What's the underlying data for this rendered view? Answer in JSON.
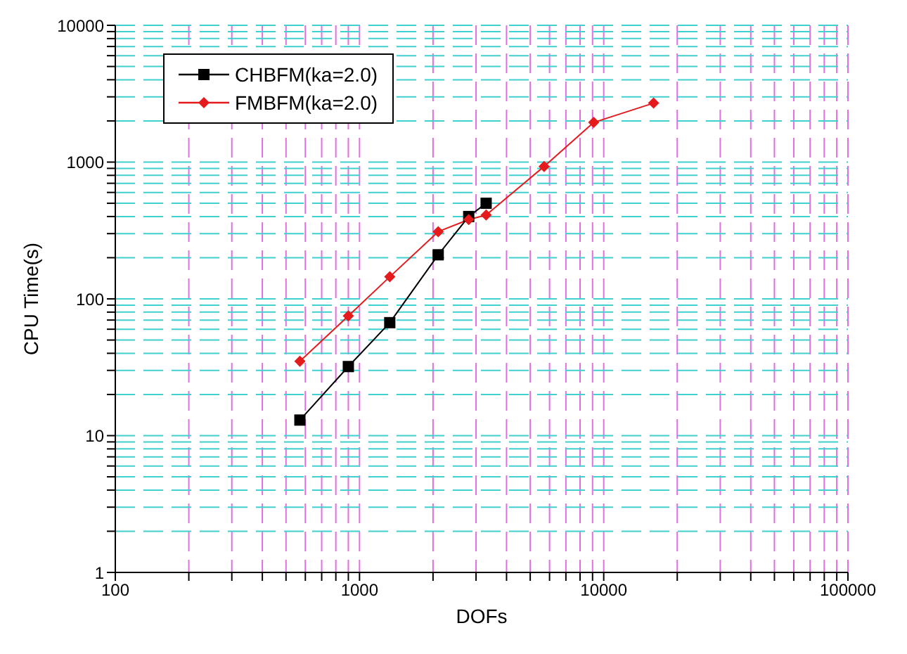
{
  "chart_data": {
    "type": "line",
    "xlabel": "DOFs",
    "ylabel": "CPU Time(s)",
    "log": "xy",
    "xlim": [
      100,
      100000
    ],
    "ylim": [
      1,
      10000
    ],
    "xticks": [
      100,
      {
        "value": 200,
        "label": null
      },
      {
        "value": 300,
        "label": null
      },
      {
        "value": 400,
        "label": null
      },
      {
        "value": 500,
        "label": null
      },
      {
        "value": 600,
        "label": null
      },
      {
        "value": 700,
        "label": null
      },
      {
        "value": 800,
        "label": null
      },
      {
        "value": 900,
        "label": null
      },
      1000,
      {
        "value": 2000,
        "label": null
      },
      {
        "value": 3000,
        "label": null
      },
      {
        "value": 4000,
        "label": null
      },
      {
        "value": 5000,
        "label": null
      },
      {
        "value": 6000,
        "label": null
      },
      {
        "value": 7000,
        "label": null
      },
      {
        "value": 8000,
        "label": null
      },
      {
        "value": 9000,
        "label": null
      },
      10000,
      {
        "value": 20000,
        "label": null
      },
      {
        "value": 30000,
        "label": null
      },
      {
        "value": 40000,
        "label": null
      },
      {
        "value": 50000,
        "label": null
      },
      {
        "value": 60000,
        "label": null
      },
      {
        "value": 70000,
        "label": null
      },
      {
        "value": 80000,
        "label": null
      },
      {
        "value": 90000,
        "label": null
      },
      100000
    ],
    "yticks": [
      1,
      {
        "value": 2,
        "label": null
      },
      {
        "value": 3,
        "label": null
      },
      {
        "value": 4,
        "label": null
      },
      {
        "value": 5,
        "label": null
      },
      {
        "value": 6,
        "label": null
      },
      {
        "value": 7,
        "label": null
      },
      {
        "value": 8,
        "label": null
      },
      {
        "value": 9,
        "label": null
      },
      10,
      {
        "value": 20,
        "label": null
      },
      {
        "value": 30,
        "label": null
      },
      {
        "value": 40,
        "label": null
      },
      {
        "value": 50,
        "label": null
      },
      {
        "value": 60,
        "label": null
      },
      {
        "value": 70,
        "label": null
      },
      {
        "value": 80,
        "label": null
      },
      {
        "value": 90,
        "label": null
      },
      100,
      {
        "value": 200,
        "label": null
      },
      {
        "value": 300,
        "label": null
      },
      {
        "value": 400,
        "label": null
      },
      {
        "value": 500,
        "label": null
      },
      {
        "value": 600,
        "label": null
      },
      {
        "value": 700,
        "label": null
      },
      {
        "value": 800,
        "label": null
      },
      {
        "value": 900,
        "label": null
      },
      1000,
      {
        "value": 2000,
        "label": null
      },
      {
        "value": 3000,
        "label": null
      },
      {
        "value": 4000,
        "label": null
      },
      {
        "value": 5000,
        "label": null
      },
      {
        "value": 6000,
        "label": null
      },
      {
        "value": 7000,
        "label": null
      },
      {
        "value": 8000,
        "label": null
      },
      {
        "value": 9000,
        "label": null
      },
      10000
    ],
    "grid": true,
    "legend": "top left",
    "line_style": "solid",
    "series": [
      {
        "name": "CHBFM(ka=2.0)",
        "color": "#000000",
        "marker": "square",
        "x": [
          570,
          900,
          1330,
          2100,
          2800,
          3300
        ],
        "values": [
          13,
          32,
          67,
          210,
          400,
          500
        ]
      },
      {
        "name": "FMBFM(ka=2.0)",
        "color": "#e41a1c",
        "marker": "diamond",
        "x": [
          570,
          900,
          1330,
          2100,
          2800,
          3300,
          5700,
          9100,
          16000
        ],
        "values": [
          35,
          75,
          145,
          310,
          380,
          410,
          930,
          1950,
          2700
        ]
      }
    ]
  }
}
